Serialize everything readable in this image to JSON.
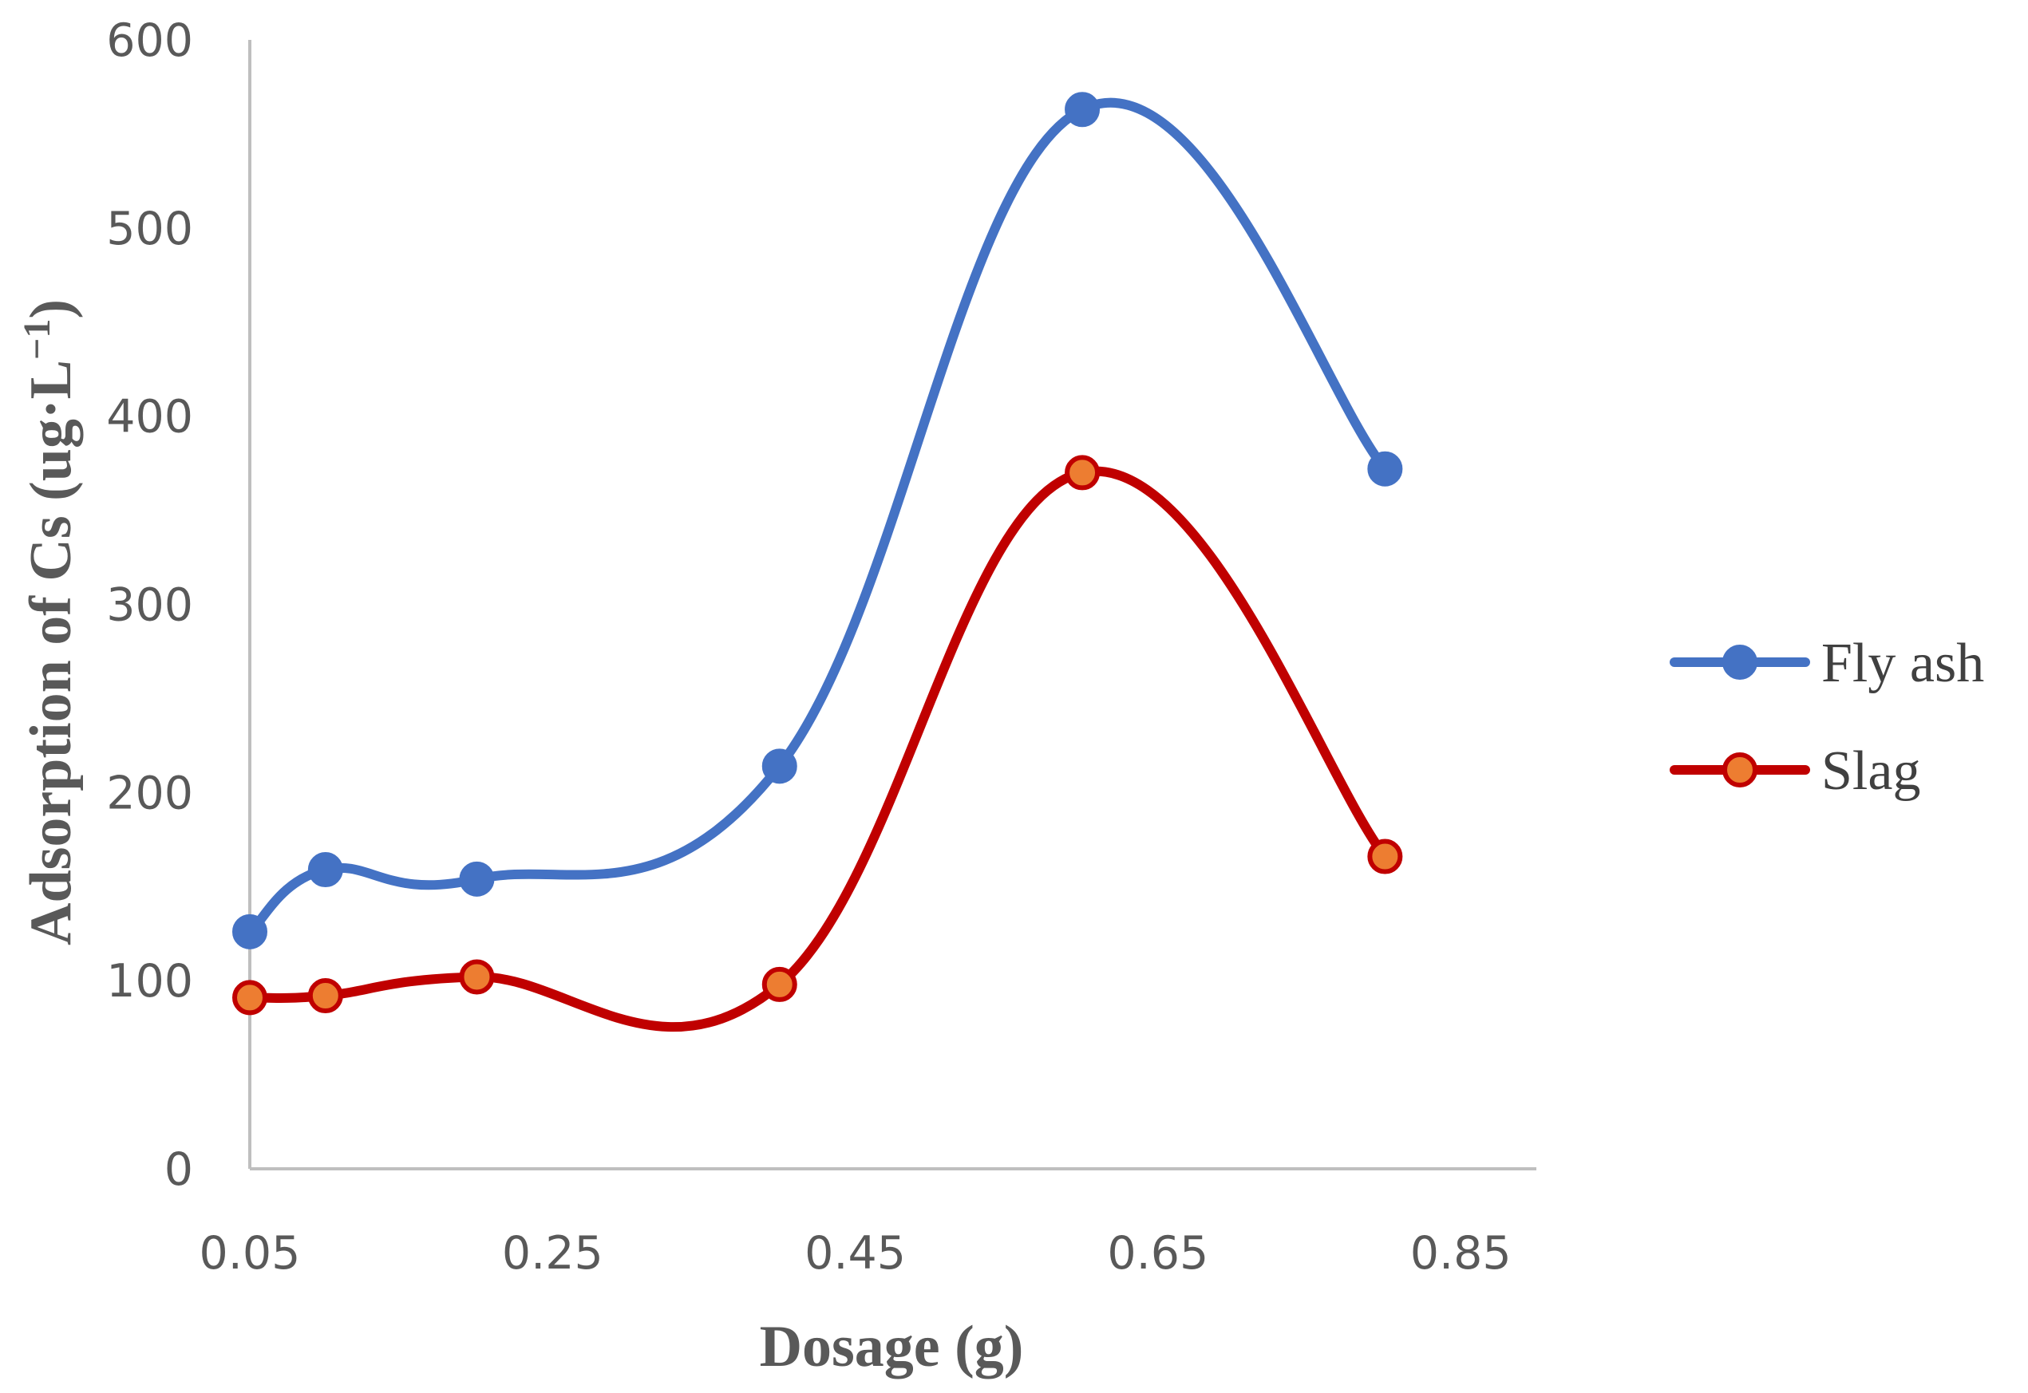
{
  "chart_data": {
    "type": "line",
    "smooth": true,
    "title": "",
    "xlabel": "Dosage (g)",
    "ylabel": "Adsorption of Cs (ug·L⁻¹)",
    "ylabel_parts": {
      "main": "Adsorption of Cs (ug·L",
      "superscript": "−1",
      "close": ")"
    },
    "xlim": [
      0.05,
      0.9
    ],
    "ylim": [
      0,
      600
    ],
    "xticks": [
      "0.05",
      "0.25",
      "0.45",
      "0.65",
      "0.85"
    ],
    "xtick_values": [
      0.05,
      0.25,
      0.45,
      0.65,
      0.85
    ],
    "yticks": [
      "0",
      "100",
      "200",
      "300",
      "400",
      "500",
      "600"
    ],
    "ytick_values": [
      0,
      100,
      200,
      300,
      400,
      500,
      600
    ],
    "grid": false,
    "legend_position": "right",
    "x": [
      0.05,
      0.1,
      0.2,
      0.4,
      0.6,
      0.8
    ],
    "series": [
      {
        "name": "Fly ash",
        "values": [
          126,
          159,
          154,
          214,
          563,
          372
        ],
        "color": "#4472C4",
        "marker_fill": "#4472C4",
        "marker_edge": "#4472C4"
      },
      {
        "name": "Slag",
        "values": [
          91,
          92,
          102,
          98,
          370,
          166
        ],
        "color": "#C00000",
        "marker_fill": "#ED7D31",
        "marker_edge": "#C00000"
      }
    ]
  }
}
